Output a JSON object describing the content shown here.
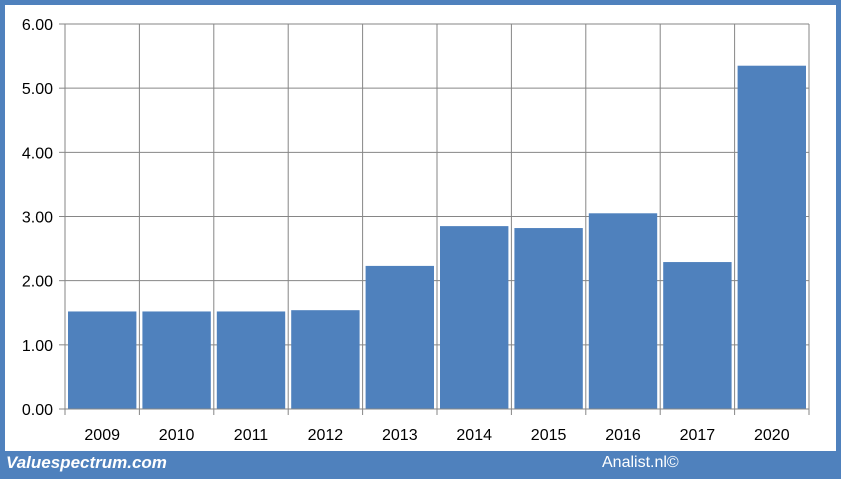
{
  "chart_data": {
    "type": "bar",
    "categories": [
      "2009",
      "2010",
      "2011",
      "2012",
      "2013",
      "2014",
      "2015",
      "2016",
      "2017",
      "2020"
    ],
    "values": [
      1.52,
      1.52,
      1.52,
      1.54,
      2.23,
      2.85,
      2.82,
      3.05,
      2.29,
      5.35
    ],
    "yticks": [
      "0.00",
      "1.00",
      "2.00",
      "3.00",
      "4.00",
      "5.00",
      "6.00"
    ],
    "ylim": [
      0,
      6
    ],
    "grid": true,
    "bar_color": "#4f81bd"
  },
  "footer": {
    "source": "Valuespectrum.com",
    "credit": "Analist.nl©"
  },
  "colors": {
    "frame": "#4f81bd",
    "grid": "#868686"
  }
}
